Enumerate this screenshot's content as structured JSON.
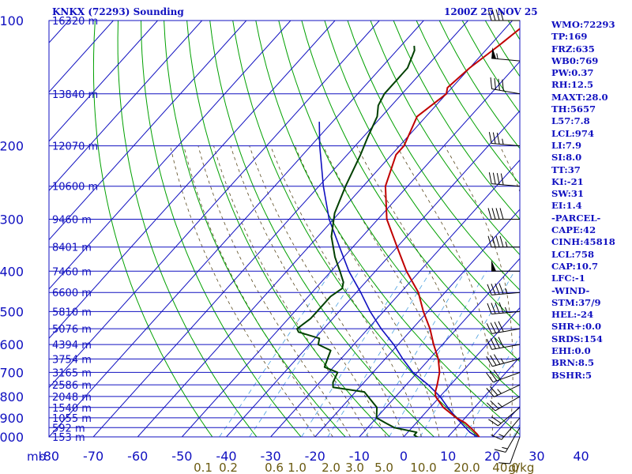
{
  "header": {
    "title": "KNKX (72293) Sounding",
    "datetime": "1200Z 25 NOV 25"
  },
  "indices": [
    "WMO:72293",
    "TP:169",
    "FRZ:635",
    "WB0:769",
    "PW:0.37",
    "RH:12.5",
    "MAXT:28.0",
    "TH:5657",
    "L57:7.8",
    "LCL:974",
    "LI:7.9",
    "SI:8.0",
    "TT:37",
    "KI:-21",
    "SW:31",
    "EI:1.4",
    "-PARCEL-",
    "CAPE:42",
    "CINH:45818",
    "LCL:758",
    "CAP:10.7",
    "LFC:-1",
    "-WIND-",
    "STM:37/9",
    "HEL:-24",
    "SHR+:0.0",
    "SRDS:154",
    "EHI:0.0",
    "BRN:8.5",
    "BSHR:5"
  ],
  "colors": {
    "text": "#1010c0",
    "isobar": "#1010c0",
    "isotherm": "#1010c0",
    "dry_adiabat": "#00a000",
    "moist_adiabat": "#5a4a20",
    "mixing_ratio": "#4aa0e0",
    "temperature": "#c00000",
    "dewpoint": "#004000",
    "parcel": "#1010c0",
    "wind_barb": "#000000",
    "mixing_label": "#6a5a10"
  },
  "chart_data": {
    "type": "skew-t",
    "pressure_unit_label": "mb",
    "pressure_levels": [
      100,
      200,
      300,
      400,
      500,
      600,
      700,
      800,
      900,
      1000
    ],
    "temperature_ticks": [
      -80,
      -70,
      -60,
      -50,
      -40,
      -30,
      -20,
      -10,
      0,
      10,
      20,
      30,
      40
    ],
    "mixing_ratio_unit": "g/kg",
    "mixing_ratio_ticks": [
      "0.1",
      "0.2",
      "0.6",
      "1.0",
      "2.0",
      "3.0",
      "5.0",
      "10.0",
      "20.0",
      "40.0"
    ],
    "heights": [
      {
        "p": 100,
        "label": "16320 m"
      },
      {
        "p": 150,
        "label": "13840 m"
      },
      {
        "p": 200,
        "label": "12070 m"
      },
      {
        "p": 250,
        "label": "10600 m"
      },
      {
        "p": 300,
        "label": "9460 m"
      },
      {
        "p": 350,
        "label": "8401 m"
      },
      {
        "p": 400,
        "label": "7460 m"
      },
      {
        "p": 450,
        "label": "6600 m"
      },
      {
        "p": 500,
        "label": "5810 m"
      },
      {
        "p": 550,
        "label": "5076 m"
      },
      {
        "p": 600,
        "label": "4394 m"
      },
      {
        "p": 650,
        "label": "3754 m"
      },
      {
        "p": 700,
        "label": "3165 m"
      },
      {
        "p": 750,
        "label": "2586 m"
      },
      {
        "p": 800,
        "label": "2048 m"
      },
      {
        "p": 850,
        "label": "1540 m"
      },
      {
        "p": 900,
        "label": "1055 m"
      },
      {
        "p": 950,
        "label": "592 m"
      },
      {
        "p": 1000,
        "label": "153 m"
      }
    ],
    "temperature_profile": [
      [
        1014,
        18
      ],
      [
        1000,
        17
      ],
      [
        985,
        16
      ],
      [
        960,
        14
      ],
      [
        925,
        11
      ],
      [
        900,
        8
      ],
      [
        850,
        3
      ],
      [
        800,
        -1
      ],
      [
        780,
        -2
      ],
      [
        750,
        -3
      ],
      [
        700,
        -5
      ],
      [
        650,
        -8
      ],
      [
        600,
        -12
      ],
      [
        550,
        -16
      ],
      [
        500,
        -21
      ],
      [
        450,
        -26
      ],
      [
        400,
        -33
      ],
      [
        350,
        -40
      ],
      [
        300,
        -48
      ],
      [
        250,
        -55
      ],
      [
        210,
        -59
      ],
      [
        200,
        -59
      ],
      [
        170,
        -62
      ],
      [
        150,
        -60
      ],
      [
        145,
        -61
      ],
      [
        130,
        -60
      ],
      [
        115,
        -58
      ],
      [
        100,
        -56
      ]
    ],
    "dewpoint_profile": [
      [
        1014,
        4
      ],
      [
        1006,
        4
      ],
      [
        1000,
        3
      ],
      [
        990,
        2
      ],
      [
        975,
        2
      ],
      [
        950,
        -4
      ],
      [
        925,
        -7
      ],
      [
        900,
        -10
      ],
      [
        850,
        -12
      ],
      [
        780,
        -18
      ],
      [
        760,
        -26
      ],
      [
        740,
        -27
      ],
      [
        700,
        -28
      ],
      [
        680,
        -32
      ],
      [
        650,
        -33
      ],
      [
        620,
        -34
      ],
      [
        600,
        -38
      ],
      [
        580,
        -39
      ],
      [
        560,
        -45
      ],
      [
        550,
        -46
      ],
      [
        520,
        -45
      ],
      [
        500,
        -45
      ],
      [
        460,
        -45
      ],
      [
        440,
        -44
      ],
      [
        425,
        -45
      ],
      [
        400,
        -48
      ],
      [
        370,
        -52
      ],
      [
        330,
        -57
      ],
      [
        290,
        -61
      ],
      [
        250,
        -64
      ],
      [
        210,
        -67
      ],
      [
        190,
        -69
      ],
      [
        170,
        -71
      ],
      [
        160,
        -73
      ],
      [
        150,
        -74
      ],
      [
        130,
        -74
      ],
      [
        118,
        -76
      ],
      [
        115,
        -77
      ]
    ],
    "parcel_profile": [
      [
        1014,
        18
      ],
      [
        975,
        14
      ],
      [
        900,
        8
      ],
      [
        850,
        4
      ],
      [
        800,
        0
      ],
      [
        750,
        -5
      ],
      [
        700,
        -11
      ],
      [
        650,
        -16
      ],
      [
        600,
        -21
      ],
      [
        550,
        -27
      ],
      [
        500,
        -33
      ],
      [
        450,
        -39
      ],
      [
        400,
        -46
      ],
      [
        350,
        -53
      ],
      [
        300,
        -61
      ],
      [
        250,
        -69
      ],
      [
        200,
        -78
      ],
      [
        175,
        -83
      ]
    ],
    "wind_barbs": [
      {
        "p": 1000,
        "dir": 200,
        "spd": 10
      },
      {
        "p": 950,
        "dir": 210,
        "spd": 15
      },
      {
        "p": 900,
        "dir": 220,
        "spd": 15
      },
      {
        "p": 850,
        "dir": 230,
        "spd": 20
      },
      {
        "p": 800,
        "dir": 240,
        "spd": 25
      },
      {
        "p": 750,
        "dir": 245,
        "spd": 25
      },
      {
        "p": 700,
        "dir": 250,
        "spd": 30
      },
      {
        "p": 650,
        "dir": 255,
        "spd": 35
      },
      {
        "p": 600,
        "dir": 260,
        "spd": 40
      },
      {
        "p": 550,
        "dir": 260,
        "spd": 40
      },
      {
        "p": 500,
        "dir": 265,
        "spd": 45
      },
      {
        "p": 450,
        "dir": 265,
        "spd": 45
      },
      {
        "p": 400,
        "dir": 270,
        "spd": 50
      },
      {
        "p": 350,
        "dir": 270,
        "spd": 45
      },
      {
        "p": 300,
        "dir": 270,
        "spd": 40
      },
      {
        "p": 250,
        "dir": 275,
        "spd": 40
      },
      {
        "p": 200,
        "dir": 275,
        "spd": 35
      },
      {
        "p": 150,
        "dir": 280,
        "spd": 40
      },
      {
        "p": 125,
        "dir": 275,
        "spd": 55
      },
      {
        "p": 100,
        "dir": 270,
        "spd": 40
      }
    ]
  }
}
